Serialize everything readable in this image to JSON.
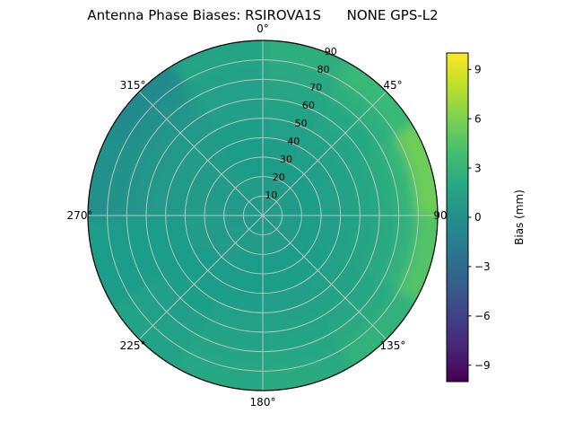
{
  "title": "Antenna Phase Biases: RSIROVA1S      NONE GPS-L2",
  "chart_data": {
    "type": "heatmap",
    "projection": "polar",
    "title": "Antenna Phase Biases: RSIROVA1S      NONE GPS-L2",
    "angular_ticks": [
      {
        "label": "0°",
        "deg": 0
      },
      {
        "label": "45°",
        "deg": 45
      },
      {
        "label": "90",
        "deg": 90
      },
      {
        "label": "135°",
        "deg": 135
      },
      {
        "label": "180°",
        "deg": 180
      },
      {
        "label": "225°",
        "deg": 225
      },
      {
        "label": "270°",
        "deg": 270
      },
      {
        "label": "315°",
        "deg": 315
      }
    ],
    "radial_ticks": [
      {
        "label": "10",
        "value": 10
      },
      {
        "label": "20",
        "value": 20
      },
      {
        "label": "30",
        "value": 30
      },
      {
        "label": "40",
        "value": 40
      },
      {
        "label": "50",
        "value": 50
      },
      {
        "label": "60",
        "value": 60
      },
      {
        "label": "70",
        "value": 70
      },
      {
        "label": "80",
        "value": 80
      },
      {
        "label": "90",
        "value": 90
      }
    ],
    "radial_axis": {
      "min": 0,
      "max": 90
    },
    "grid": true,
    "colorbar": {
      "label": "Bias (mm)",
      "colormap": "viridis",
      "range": [
        -10,
        10
      ],
      "ticks": [
        {
          "label": "9",
          "value": 9
        },
        {
          "label": "6",
          "value": 6
        },
        {
          "label": "3",
          "value": 3
        },
        {
          "label": "0",
          "value": 0
        },
        {
          "label": "−3",
          "value": -3
        },
        {
          "label": "−6",
          "value": -6
        },
        {
          "label": "−9",
          "value": -9
        }
      ]
    },
    "values": {
      "azimuth_sector_starts_deg": [
        0,
        30,
        60,
        90,
        120,
        150,
        180,
        210,
        240,
        270,
        300,
        330
      ],
      "radial_bands": [
        [
          0,
          10
        ],
        [
          10,
          20
        ],
        [
          20,
          30
        ],
        [
          30,
          40
        ],
        [
          40,
          50
        ],
        [
          50,
          60
        ],
        [
          60,
          70
        ],
        [
          70,
          80
        ],
        [
          80,
          90
        ]
      ],
      "bias_mm": [
        [
          0.8,
          0.8,
          0.8,
          0.8,
          0.8,
          0.8,
          0.8,
          0.8,
          0.8,
          0.8,
          0.8,
          0.8
        ],
        [
          0.9,
          0.9,
          1.0,
          0.9,
          0.9,
          0.9,
          0.9,
          0.9,
          0.8,
          0.8,
          0.8,
          0.9
        ],
        [
          1.0,
          1.0,
          1.1,
          1.1,
          1.0,
          1.0,
          1.0,
          0.9,
          0.9,
          0.9,
          0.9,
          1.0
        ],
        [
          1.1,
          1.2,
          1.3,
          1.2,
          1.1,
          1.1,
          1.0,
          1.0,
          0.9,
          0.9,
          0.9,
          1.0
        ],
        [
          1.3,
          1.4,
          1.5,
          1.4,
          1.3,
          1.2,
          1.1,
          1.0,
          1.0,
          0.8,
          0.9,
          1.1
        ],
        [
          1.5,
          1.7,
          1.9,
          1.7,
          1.5,
          1.4,
          1.3,
          1.1,
          1.0,
          0.7,
          0.8,
          1.2
        ],
        [
          1.8,
          2.0,
          2.3,
          2.1,
          1.8,
          1.6,
          1.5,
          1.2,
          1.0,
          0.5,
          0.5,
          1.3
        ],
        [
          2.1,
          2.5,
          3.2,
          2.8,
          2.2,
          1.9,
          1.7,
          1.3,
          1.0,
          0.2,
          0.1,
          1.4
        ],
        [
          2.5,
          3.5,
          5.5,
          4.5,
          2.8,
          2.2,
          2.0,
          1.5,
          1.0,
          0.0,
          -0.5,
          1.6
        ]
      ]
    }
  }
}
